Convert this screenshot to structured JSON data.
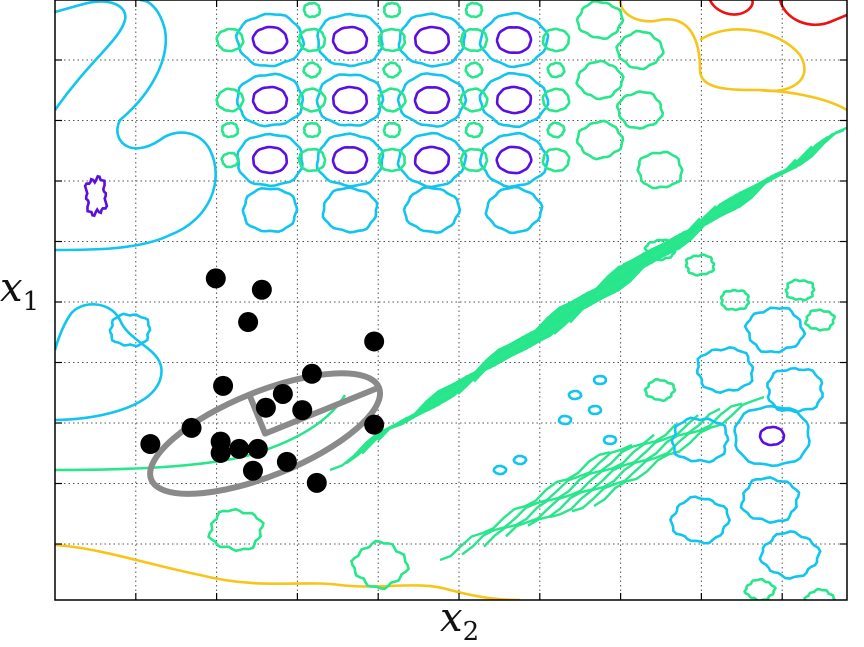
{
  "chart_data": {
    "type": "scatter",
    "xlabel": {
      "var": "x",
      "sub": "2"
    },
    "ylabel": {
      "var": "x",
      "sub": "1"
    },
    "grid": true,
    "colors": {
      "violet": "#5a0fe0",
      "cyan": "#12c5ee",
      "green": "#27e68b",
      "yellow": "#f7c51a",
      "red": "#ee1111",
      "ellipse": "#8a8a8a",
      "points": "#000000"
    },
    "points": [
      {
        "x": 1.18,
        "y": 1.93
      },
      {
        "x": 1.99,
        "y": 3.98
      },
      {
        "x": 2.05,
        "y": 1.96
      },
      {
        "x": 1.69,
        "y": 2.13
      },
      {
        "x": 2.51,
        "y": 1.87
      },
      {
        "x": 2.87,
        "y": 1.71
      },
      {
        "x": 2.28,
        "y": 1.87
      },
      {
        "x": 2.45,
        "y": 1.6
      },
      {
        "x": 2.61,
        "y": 2.38
      },
      {
        "x": 3.18,
        "y": 2.8
      },
      {
        "x": 2.39,
        "y": 3.44
      },
      {
        "x": 3.24,
        "y": 1.45
      },
      {
        "x": 3.06,
        "y": 2.35
      },
      {
        "x": 2.82,
        "y": 2.55
      },
      {
        "x": 2.56,
        "y": 3.84
      },
      {
        "x": 3.95,
        "y": 2.17
      },
      {
        "x": 2.08,
        "y": 2.65
      },
      {
        "x": 2.05,
        "y": 1.82
      },
      {
        "x": 3.95,
        "y": 3.2
      }
    ],
    "ellipse": {
      "cx": 2.6,
      "cy": 2.06,
      "rx": 1.52,
      "ry": 0.52,
      "angle_deg": 22
    }
  }
}
